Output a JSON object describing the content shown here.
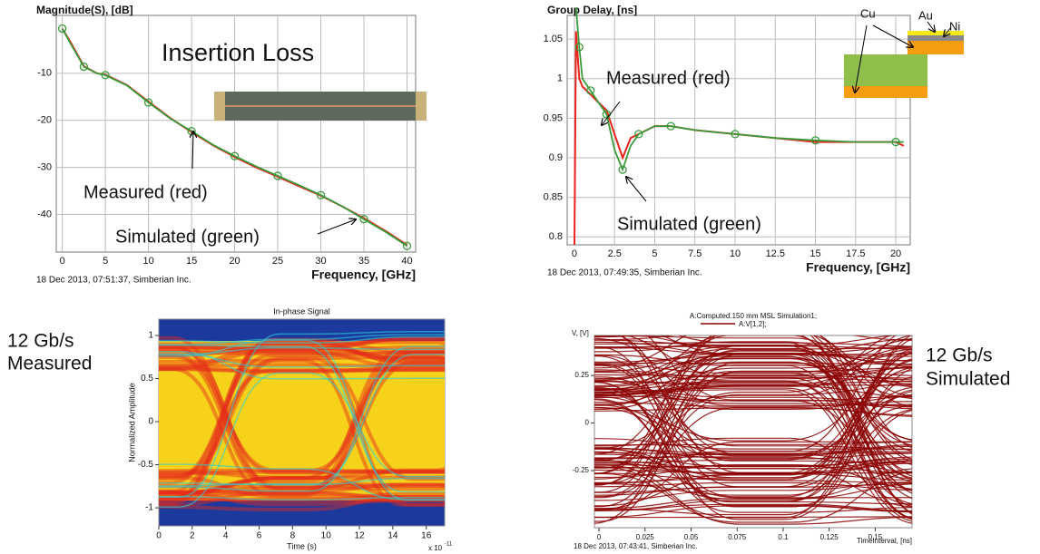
{
  "chart_data": [
    {
      "type": "line",
      "y_label": "Magnitude(S), [dB]",
      "x_label": "Frequency, [GHz]",
      "footer": "18 Dec 2013, 07:51:37, Simberian Inc.",
      "annotations": [
        "Insertion Loss",
        "Measured (red)",
        "Simulated (green)"
      ],
      "x": [
        0,
        1,
        2.5,
        4,
        5,
        7.5,
        10,
        12.5,
        15,
        17.5,
        20,
        22.5,
        25,
        27.5,
        30,
        32.5,
        35,
        37.5,
        40
      ],
      "series": [
        {
          "name": "Measured",
          "color": "#e8231c",
          "values": [
            -0.5,
            -3.5,
            -8.5,
            -10,
            -10.3,
            -12.5,
            -16,
            -19.5,
            -22.5,
            -25.3,
            -27.8,
            -30,
            -32,
            -34,
            -36,
            -38.3,
            -40.8,
            -43.5,
            -46.5
          ]
        },
        {
          "name": "Simulated",
          "color": "#3a9a3a",
          "values": [
            -0.5,
            -3.8,
            -8.6,
            -10,
            -10.4,
            -12.6,
            -16.2,
            -19.6,
            -22.3,
            -25.2,
            -27.6,
            -29.8,
            -31.8,
            -33.8,
            -35.9,
            -38.3,
            -41,
            -43.7,
            -46.7
          ]
        }
      ],
      "xlim": [
        -0.7,
        41
      ],
      "ylim": [
        -48,
        2.3
      ],
      "xticks": [
        0,
        5,
        10,
        15,
        20,
        25,
        30,
        35,
        40
      ],
      "yticks": [
        -10,
        -20,
        -30,
        -40
      ],
      "grid": true
    },
    {
      "type": "line",
      "y_label": "Group Delay, [ns]",
      "x_label": "Frequency, [GHz]",
      "footer": "18 Dec 2013, 07:49:35, Simberian Inc.",
      "annotations": [
        "Measured (red)",
        "Simulated (green)"
      ],
      "diagram_labels": [
        "Cu",
        "Au",
        "Ni"
      ],
      "x": [
        0,
        0.1,
        0.3,
        0.5,
        1,
        1.5,
        2,
        2.5,
        3,
        3.5,
        4,
        5,
        6,
        7.5,
        10,
        12.5,
        15,
        17.5,
        20,
        20.5
      ],
      "series": [
        {
          "name": "Measured",
          "color": "#e8231c",
          "values": [
            0.79,
            1.06,
            1.0,
            0.99,
            0.98,
            0.97,
            0.96,
            0.93,
            0.9,
            0.925,
            0.93,
            0.94,
            0.94,
            0.935,
            0.93,
            0.925,
            0.92,
            0.92,
            0.92,
            0.915
          ]
        },
        {
          "name": "Simulated",
          "color": "#3a9a3a",
          "values": [
            null,
            1.09,
            1.04,
            1.0,
            0.985,
            0.97,
            0.955,
            0.91,
            0.885,
            0.915,
            0.93,
            0.94,
            0.94,
            0.935,
            0.93,
            0.925,
            0.922,
            0.92,
            0.92,
            0.92
          ]
        }
      ],
      "xlim": [
        -0.45,
        20.9
      ],
      "ylim": [
        0.79,
        1.08
      ],
      "xticks": [
        0,
        2.5,
        5,
        7.5,
        10,
        12.5,
        15,
        17.5,
        20
      ],
      "yticks": [
        0.8,
        0.85,
        0.9,
        0.95,
        1,
        1.05
      ],
      "grid": true
    },
    {
      "type": "eye",
      "style": "heatmap",
      "title": "In-phase Signal",
      "y_label": "Normalized Amplitude",
      "x_label": "Time (s)",
      "x_scale_label": "x 10",
      "x_scale_exponent": "-11",
      "side_labels": [
        "12 Gb/s",
        "Measured"
      ],
      "xlim": [
        0,
        17.1
      ],
      "ylim": [
        -1.21,
        1.19
      ],
      "xticks": [
        0,
        2,
        4,
        6,
        8,
        10,
        12,
        14,
        16
      ],
      "yticks": [
        -1,
        -0.5,
        0,
        0.5,
        1
      ]
    },
    {
      "type": "eye",
      "style": "traces",
      "title": "A:Computed.150 mm MSL Simulation1;",
      "series": [
        {
          "name": "A:V[1,2];",
          "color": "#8b0000"
        }
      ],
      "y_label": "V, [V]",
      "x_label": "TimeInterval, [ns]",
      "footer": "18 Dec 2013, 07:43:41, Simberian Inc.",
      "side_labels": [
        "12 Gb/s",
        "Simulated"
      ],
      "xlim": [
        -0.0025,
        0.17
      ],
      "ylim": [
        -0.55,
        0.46
      ],
      "xticks": [
        0,
        0.025,
        0.05,
        0.075,
        0.1,
        0.125,
        0.15
      ],
      "yticks": [
        0.25,
        0,
        -0.25
      ]
    }
  ]
}
